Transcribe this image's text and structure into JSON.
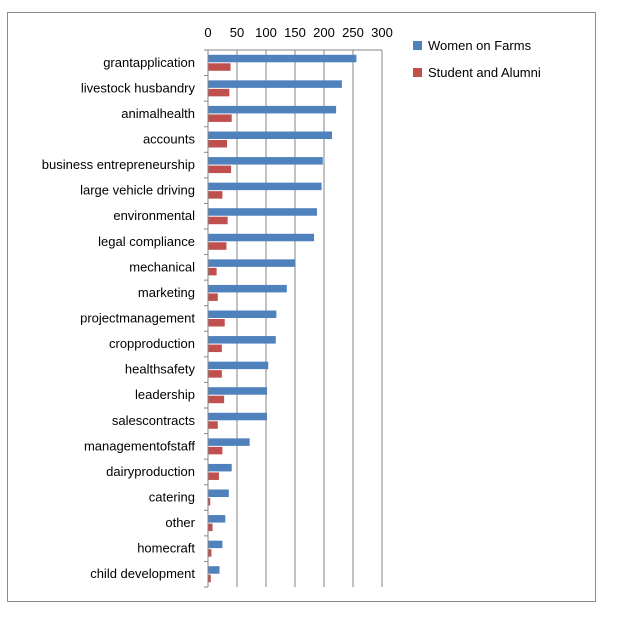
{
  "chart_data": {
    "type": "bar",
    "orientation": "horizontal",
    "title": "",
    "xlabel": "",
    "ylabel": "",
    "xlim": [
      0,
      300
    ],
    "xticks": [
      0,
      50,
      100,
      150,
      200,
      250,
      300
    ],
    "xaxis_position": "top",
    "grid": "vertical",
    "legend_position": "top-right",
    "categories": [
      "grantapplication",
      "livestock husbandry",
      "animalhealth",
      "accounts",
      "business entrepreneurship",
      "large vehicle driving",
      "environmental",
      "legal compliance",
      "mechanical",
      "marketing",
      "projectmanagement",
      "cropproduction",
      "healthsafety",
      "leadership",
      "salescontracts",
      "managementofstaff",
      "dairyproduction",
      "catering",
      "other",
      "homecraft",
      "child development"
    ],
    "series": [
      {
        "name": "Women on Farms",
        "color": "#4f81bd",
        "values": [
          255,
          230,
          220,
          213,
          197,
          195,
          187,
          182,
          150,
          135,
          117,
          116,
          103,
          101,
          101,
          71,
          40,
          35,
          29,
          24,
          19
        ]
      },
      {
        "name": "Student and Alumni",
        "color": "#c0504d",
        "values": [
          38,
          36,
          40,
          32,
          39,
          24,
          33,
          31,
          14,
          16,
          28,
          23,
          23,
          27,
          16,
          24,
          18,
          3,
          7,
          5,
          4
        ]
      }
    ]
  }
}
